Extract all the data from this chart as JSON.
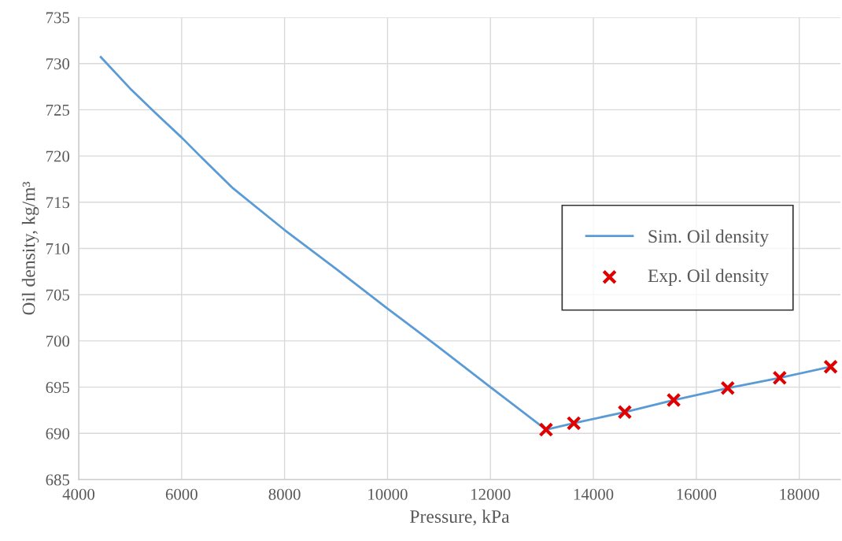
{
  "chart_data": {
    "type": "line",
    "xlabel": "Pressure, kPa",
    "ylabel": "Oil density, kg/m³",
    "xlim": [
      4000,
      18800
    ],
    "xticks": [
      4000,
      6000,
      8000,
      10000,
      12000,
      14000,
      16000,
      18000
    ],
    "ylim": [
      685,
      735
    ],
    "yticks": [
      685,
      690,
      695,
      700,
      705,
      710,
      715,
      720,
      725,
      730,
      735
    ],
    "grid": true,
    "legend": "right",
    "series": [
      {
        "name": "Sim. Oil density",
        "color": "#5b9bd5",
        "marker": "none",
        "x": [
          4430,
          5000,
          5500,
          6000,
          6430,
          7000,
          8000,
          9000,
          10000,
          11000,
          12000,
          13080,
          13620,
          14610,
          15560,
          16610,
          17620,
          18610
        ],
        "values": [
          730.7,
          727.3,
          724.6,
          722.0,
          719.6,
          716.5,
          712.0,
          707.8,
          703.5,
          699.3,
          695.0,
          690.4,
          691.1,
          692.3,
          693.6,
          694.9,
          696.0,
          697.2
        ]
      },
      {
        "name": "Exp. Oil density",
        "type": "scatter",
        "color": "#e00000",
        "marker": "cross",
        "x": [
          13080,
          13620,
          14610,
          15560,
          16610,
          17620,
          18610
        ],
        "values": [
          690.4,
          691.1,
          692.3,
          693.6,
          694.9,
          696.0,
          697.2
        ]
      }
    ]
  }
}
